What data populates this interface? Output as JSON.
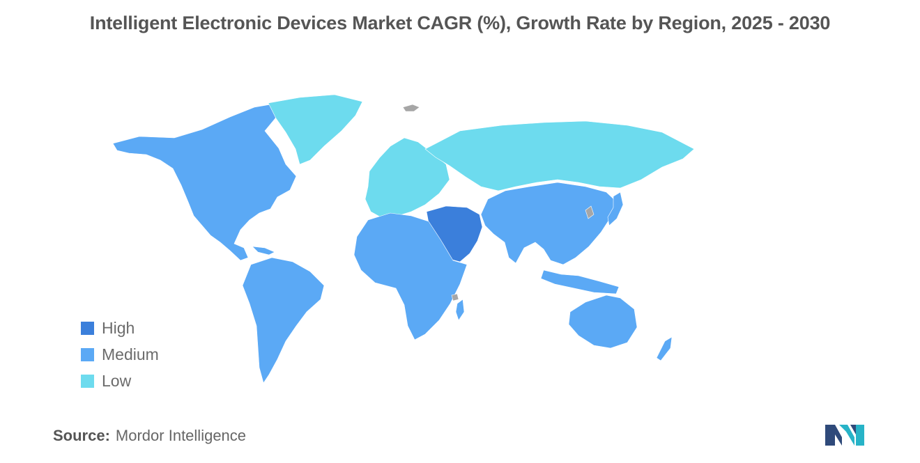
{
  "title": "Intelligent Electronic Devices Market CAGR (%), Growth Rate by Region, 2025 - 2030",
  "legend": [
    {
      "label": "High",
      "color": "#3b7fdb"
    },
    {
      "label": "Medium",
      "color": "#5ba9f5"
    },
    {
      "label": "Low",
      "color": "#6ddbee"
    }
  ],
  "regions": {
    "north_america": "Medium",
    "greenland": "Low",
    "south_america": "Medium",
    "europe": "Low",
    "russia": "Low",
    "middle_east": "High",
    "africa": "Medium",
    "asia": "Medium",
    "oceania": "Medium"
  },
  "no_data_color": "#a6a6a6",
  "source": {
    "label": "Source:",
    "text": "Mordor Intelligence"
  },
  "logo": {
    "icon": "mordor-intelligence-logo",
    "colors": [
      "#2f4a7a",
      "#27b3c7"
    ]
  }
}
